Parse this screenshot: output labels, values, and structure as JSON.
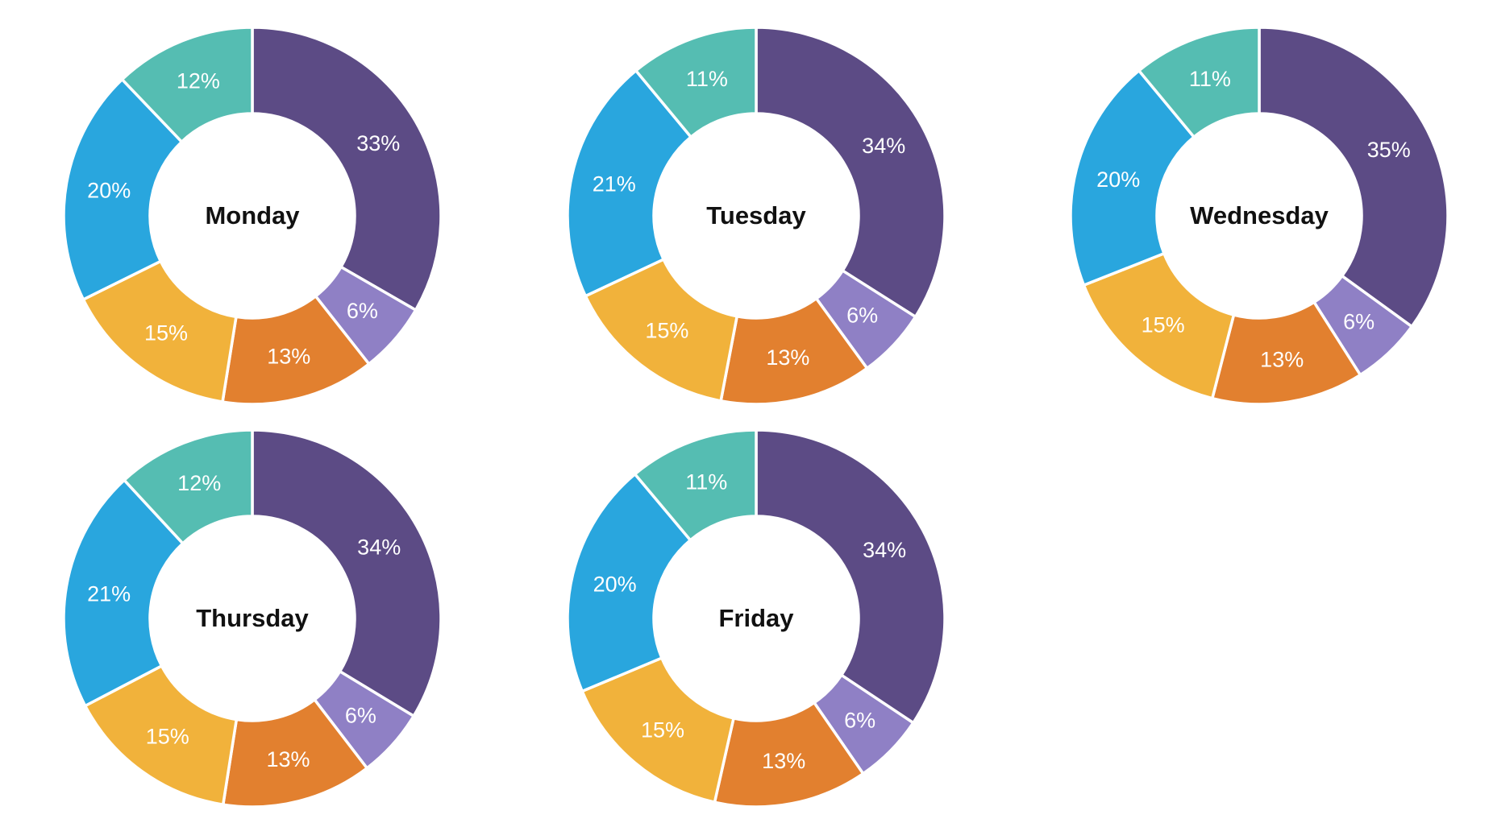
{
  "palette": {
    "slice_colors": [
      "#5C4B85",
      "#8F80C5",
      "#E2802F",
      "#F1B23B",
      "#29A6DE",
      "#55BDB2"
    ],
    "slice_stroke": "#FFFFFF",
    "percent_label_color": "#FFFFFF",
    "title_color": "#111111",
    "background": "#FFFFFF"
  },
  "layout_hints": {
    "grid": "3 columns x 2 rows",
    "legend": "none",
    "start_angle_deg": 0,
    "direction": "clockwise",
    "donut_hole_ratio": 0.54,
    "labels_position": "mid-ring"
  },
  "chart_data": [
    {
      "type": "pie",
      "subtype": "donut",
      "title": "Monday",
      "values": [
        33,
        6,
        13,
        15,
        20,
        12
      ],
      "value_labels": [
        "33%",
        "6%",
        "13%",
        "15%",
        "20%",
        "12%"
      ]
    },
    {
      "type": "pie",
      "subtype": "donut",
      "title": "Tuesday",
      "values": [
        34,
        6,
        13,
        15,
        21,
        11
      ],
      "value_labels": [
        "34%",
        "6%",
        "13%",
        "15%",
        "21%",
        "11%"
      ]
    },
    {
      "type": "pie",
      "subtype": "donut",
      "title": "Wednesday",
      "values": [
        35,
        6,
        13,
        15,
        20,
        11
      ],
      "value_labels": [
        "35%",
        "6%",
        "13%",
        "15%",
        "20%",
        "11%"
      ]
    },
    {
      "type": "pie",
      "subtype": "donut",
      "title": "Thursday",
      "values": [
        34,
        6,
        13,
        15,
        21,
        12
      ],
      "value_labels": [
        "34%",
        "6%",
        "13%",
        "15%",
        "21%",
        "12%"
      ]
    },
    {
      "type": "pie",
      "subtype": "donut",
      "title": "Friday",
      "values": [
        34,
        6,
        13,
        15,
        20,
        11
      ],
      "value_labels": [
        "34%",
        "6%",
        "13%",
        "15%",
        "20%",
        "11%"
      ]
    }
  ]
}
